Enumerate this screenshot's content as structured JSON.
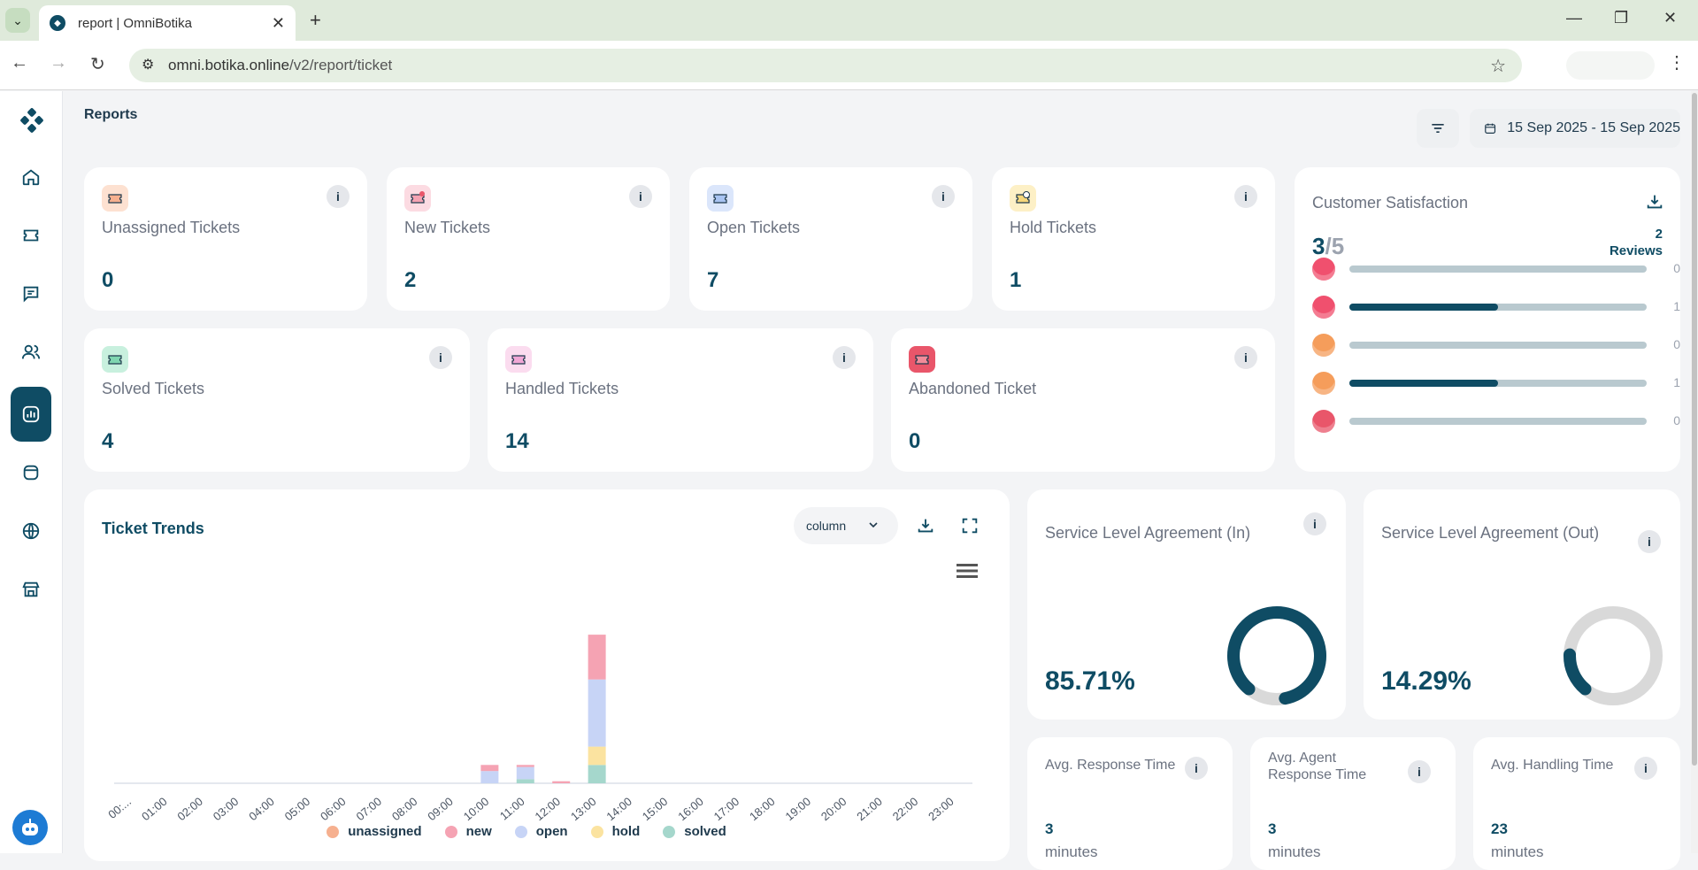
{
  "browser": {
    "tab_title": "report | OmniBotika",
    "url_domain": "omni.botika.online",
    "url_path": "/v2/report/ticket"
  },
  "sidebar": {
    "items": [
      {
        "name": "home-icon"
      },
      {
        "name": "ticket-icon"
      },
      {
        "name": "chat-icon"
      },
      {
        "name": "users-icon"
      },
      {
        "name": "report-icon",
        "active": true
      },
      {
        "name": "box-icon"
      },
      {
        "name": "globe-icon"
      },
      {
        "name": "store-icon"
      }
    ]
  },
  "page": {
    "title": "Reports",
    "date_range": "15 Sep 2025 - 15 Sep 2025"
  },
  "stats": [
    {
      "label": "Unassigned Tickets",
      "value": "0",
      "color": "#f6b08f"
    },
    {
      "label": "New Tickets",
      "value": "2",
      "color": "#f5a3b3"
    },
    {
      "label": "Open Tickets",
      "value": "7",
      "color": "#a9c4f2"
    },
    {
      "label": "Hold Tickets",
      "value": "1",
      "color": "#f6d77b"
    },
    {
      "label": "Solved Tickets",
      "value": "4",
      "color": "#7fd6b0"
    },
    {
      "label": "Handled Tickets",
      "value": "14",
      "color": "#f1a7d6"
    },
    {
      "label": "Abandoned Ticket",
      "value": "0",
      "color": "#e9566a"
    }
  ],
  "csat": {
    "title": "Customer Satisfaction",
    "score": "3",
    "denominator": "/5",
    "reviews_count": "2",
    "reviews_label": "Reviews",
    "rows": [
      {
        "face": "love",
        "count": "0",
        "fraction": 0
      },
      {
        "face": "happy",
        "count": "1",
        "fraction": 0.5
      },
      {
        "face": "neutral",
        "count": "0",
        "fraction": 0
      },
      {
        "face": "sad",
        "count": "1",
        "fraction": 0.5
      },
      {
        "face": "sick",
        "count": "0",
        "fraction": 0
      }
    ]
  },
  "trend": {
    "title": "Ticket Trends",
    "chart_type_select": "column"
  },
  "chart_data": {
    "type": "bar",
    "stacked": true,
    "title": "",
    "categories": [
      "00:...",
      "01:00",
      "02:00",
      "03:00",
      "04:00",
      "05:00",
      "06:00",
      "07:00",
      "08:00",
      "09:00",
      "10:00",
      "11:00",
      "12:00",
      "13:00",
      "14:00",
      "15:00",
      "16:00",
      "17:00",
      "18:00",
      "19:00",
      "20:00",
      "21:00",
      "22:00",
      "23:00"
    ],
    "series": [
      {
        "name": "unassigned",
        "color": "#f6b08f",
        "values": [
          0,
          0,
          0,
          0,
          0,
          0,
          0,
          0,
          0,
          0,
          0,
          0,
          0,
          0,
          0,
          0,
          0,
          0,
          0,
          0,
          0,
          0,
          0,
          0
        ]
      },
      {
        "name": "new",
        "color": "#f5a3b3",
        "values": [
          0,
          0,
          0,
          0,
          0,
          0,
          0,
          0,
          0,
          0,
          0.3,
          0.1,
          0.1,
          2.2,
          0,
          0,
          0,
          0,
          0,
          0,
          0,
          0,
          0,
          0
        ]
      },
      {
        "name": "open",
        "color": "#c7d4f6",
        "values": [
          0,
          0,
          0,
          0,
          0,
          0,
          0,
          0,
          0,
          0,
          0.6,
          0.6,
          0,
          3.3,
          0,
          0,
          0,
          0,
          0,
          0,
          0,
          0,
          0,
          0
        ]
      },
      {
        "name": "hold",
        "color": "#fbe3a0",
        "values": [
          0,
          0,
          0,
          0,
          0,
          0,
          0,
          0,
          0,
          0,
          0,
          0,
          0,
          0.9,
          0,
          0,
          0,
          0,
          0,
          0,
          0,
          0,
          0,
          0
        ]
      },
      {
        "name": "solved",
        "color": "#a5d7cc",
        "values": [
          0,
          0,
          0,
          0,
          0,
          0,
          0,
          0,
          0,
          0,
          0,
          0.2,
          0,
          0.9,
          0,
          0,
          0,
          0,
          0,
          0,
          0,
          0,
          0,
          0
        ]
      }
    ],
    "ylim": [
      0,
      8
    ],
    "legend": "bottom"
  },
  "sla_in": {
    "title": "Service Level Agreement (In)",
    "value": "85.71%",
    "fraction": 0.8571
  },
  "sla_out": {
    "title": "Service Level Agreement (Out)",
    "value": "14.29%",
    "fraction": 0.1429
  },
  "avg": [
    {
      "title": "Avg. Response Time",
      "value": "3",
      "unit": "minutes"
    },
    {
      "title": "Avg. Agent Response Time",
      "value": "3",
      "unit": "minutes"
    },
    {
      "title": "Avg. Handling Time",
      "value": "23",
      "unit": "minutes"
    }
  ]
}
